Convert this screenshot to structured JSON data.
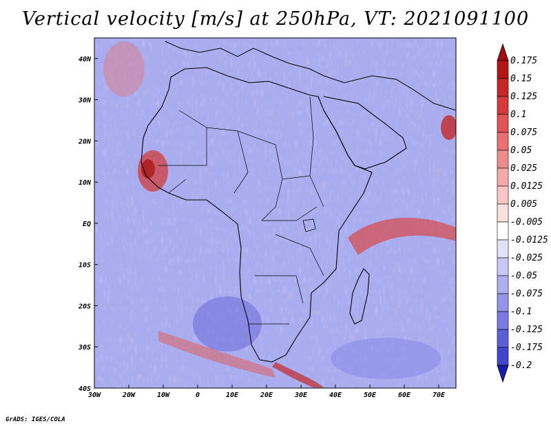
{
  "title": "Vertical velocity [m/s] at 250hPa, VT: 2021091100",
  "footer": "GrADS: IGES/COLA",
  "map": {
    "region": "Africa and surrounding oceans",
    "lon_range": [
      -30,
      75
    ],
    "lat_range": [
      -40,
      45
    ],
    "x_ticks": [
      {
        "value": -30,
        "label": "30W"
      },
      {
        "value": -20,
        "label": "20W"
      },
      {
        "value": -10,
        "label": "10W"
      },
      {
        "value": 0,
        "label": "0"
      },
      {
        "value": 10,
        "label": "10E"
      },
      {
        "value": 20,
        "label": "20E"
      },
      {
        "value": 30,
        "label": "30E"
      },
      {
        "value": 40,
        "label": "40E"
      },
      {
        "value": 50,
        "label": "50E"
      },
      {
        "value": 60,
        "label": "60E"
      },
      {
        "value": 70,
        "label": "70E"
      }
    ],
    "y_ticks": [
      {
        "value": 40,
        "label": "40N"
      },
      {
        "value": 30,
        "label": "30N"
      },
      {
        "value": 20,
        "label": "20N"
      },
      {
        "value": 10,
        "label": "10N"
      },
      {
        "value": 0,
        "label": "EQ"
      },
      {
        "value": -10,
        "label": "10S"
      },
      {
        "value": -20,
        "label": "20S"
      },
      {
        "value": -30,
        "label": "30S"
      },
      {
        "value": -40,
        "label": "40S"
      }
    ]
  },
  "colorbar": {
    "levels": [
      {
        "label": "0.175",
        "color": "#b01818"
      },
      {
        "label": "0.15",
        "color": "#c42828"
      },
      {
        "label": "0.125",
        "color": "#d43c3c"
      },
      {
        "label": "0.1",
        "color": "#e05656"
      },
      {
        "label": "0.075",
        "color": "#e87070"
      },
      {
        "label": "0.05",
        "color": "#ee8c8c"
      },
      {
        "label": "0.025",
        "color": "#f4aaaa"
      },
      {
        "label": "0.0125",
        "color": "#f8c6c6"
      },
      {
        "label": "0.005",
        "color": "#fbe0e0"
      },
      {
        "label": "-0.005",
        "color": "#ffffff"
      },
      {
        "label": "-0.0125",
        "color": "#e2e2fb"
      },
      {
        "label": "-0.025",
        "color": "#c8c8f6"
      },
      {
        "label": "-0.05",
        "color": "#aeaef0"
      },
      {
        "label": "-0.075",
        "color": "#9494ea"
      },
      {
        "label": "-0.1",
        "color": "#7a7ae2"
      },
      {
        "label": "-0.125",
        "color": "#5e5ed8"
      },
      {
        "label": "-0.175",
        "color": "#4444cc"
      },
      {
        "label": "-0.2",
        "color": "#2a2ab8"
      }
    ],
    "top_arrow_color": "#a01010",
    "bottom_arrow_color": "#1c1ca8"
  }
}
